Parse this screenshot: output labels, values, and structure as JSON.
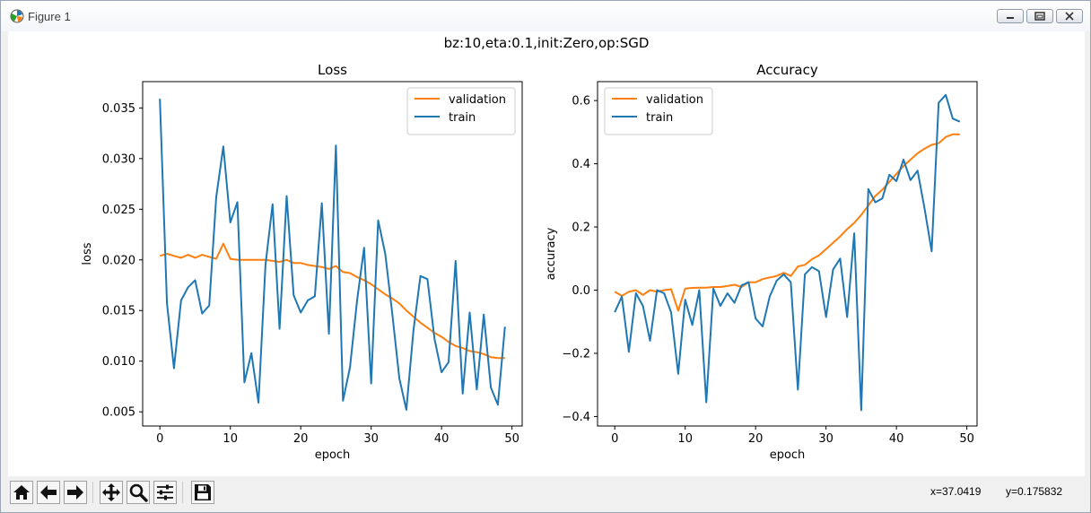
{
  "window": {
    "title": "Figure 1",
    "icon": "matplotlib-icon",
    "controls": [
      "minimize-icon",
      "maximize-icon",
      "close-icon"
    ]
  },
  "figure": {
    "suptitle": "bz:10,eta:0.1,init:Zero,op:SGD"
  },
  "toolbar": {
    "buttons": [
      "home-icon",
      "back-icon",
      "forward-icon",
      "pan-icon",
      "zoom-icon",
      "configure-subplots-icon",
      "save-icon"
    ],
    "coord_x": "x=37.0419",
    "coord_y": "y=0.175832"
  },
  "colors": {
    "train": "#1f77b4",
    "validation": "#ff7f0e",
    "toolbar_bg": "#f0f0f0"
  },
  "chart_data": [
    {
      "type": "line",
      "title": "Loss",
      "xlabel": "epoch",
      "ylabel": "loss",
      "xlim": [
        -2.45,
        51.45
      ],
      "ylim": [
        0.0036,
        0.0376
      ],
      "xticks": [
        0,
        10,
        20,
        30,
        40,
        50
      ],
      "xtick_labels": [
        "0",
        "10",
        "20",
        "30",
        "40",
        "50"
      ],
      "yticks": [
        0.005,
        0.01,
        0.015,
        0.02,
        0.025,
        0.03,
        0.035
      ],
      "ytick_labels": [
        "0.005",
        "0.010",
        "0.015",
        "0.020",
        "0.025",
        "0.030",
        "0.035"
      ],
      "grid": false,
      "legend_position": "upper right",
      "series": [
        {
          "name": "validation",
          "color": "#ff7f0e",
          "x": [
            0,
            1,
            2,
            3,
            4,
            5,
            6,
            7,
            8,
            9,
            10,
            11,
            12,
            13,
            14,
            15,
            16,
            17,
            18,
            19,
            20,
            21,
            22,
            23,
            24,
            25,
            26,
            27,
            28,
            29,
            30,
            31,
            32,
            33,
            34,
            35,
            36,
            37,
            38,
            39,
            40,
            41,
            42,
            43,
            44,
            45,
            46,
            47,
            48,
            49
          ],
          "values": [
            0.0204,
            0.0206,
            0.0204,
            0.0202,
            0.0205,
            0.0202,
            0.0205,
            0.0203,
            0.0201,
            0.0216,
            0.0201,
            0.02,
            0.02,
            0.02,
            0.02,
            0.02,
            0.0199,
            0.0198,
            0.02,
            0.0197,
            0.0197,
            0.0195,
            0.0194,
            0.0193,
            0.0191,
            0.0194,
            0.0188,
            0.0187,
            0.0183,
            0.018,
            0.0176,
            0.0171,
            0.0166,
            0.0162,
            0.0157,
            0.015,
            0.0144,
            0.0138,
            0.0133,
            0.0128,
            0.0124,
            0.0119,
            0.0115,
            0.0113,
            0.011,
            0.0109,
            0.0107,
            0.0104,
            0.0103,
            0.0103
          ]
        },
        {
          "name": "train",
          "color": "#1f77b4",
          "x": [
            0,
            1,
            2,
            3,
            4,
            5,
            6,
            7,
            8,
            9,
            10,
            11,
            12,
            13,
            14,
            15,
            16,
            17,
            18,
            19,
            20,
            21,
            22,
            23,
            24,
            25,
            26,
            27,
            28,
            29,
            30,
            31,
            32,
            33,
            34,
            35,
            36,
            37,
            38,
            39,
            40,
            41,
            42,
            43,
            44,
            45,
            46,
            47,
            48,
            49
          ],
          "values": [
            0.0359,
            0.0157,
            0.0093,
            0.016,
            0.0173,
            0.018,
            0.0147,
            0.0155,
            0.0262,
            0.0312,
            0.0237,
            0.0257,
            0.0079,
            0.0108,
            0.0059,
            0.0195,
            0.0255,
            0.0132,
            0.0263,
            0.0165,
            0.0148,
            0.016,
            0.0164,
            0.0256,
            0.0127,
            0.0313,
            0.0061,
            0.0094,
            0.016,
            0.0212,
            0.0078,
            0.0239,
            0.0206,
            0.0147,
            0.0083,
            0.0052,
            0.013,
            0.0184,
            0.0181,
            0.0122,
            0.0089,
            0.0099,
            0.0199,
            0.0068,
            0.0148,
            0.0072,
            0.0146,
            0.0074,
            0.0057,
            0.0134
          ]
        }
      ]
    },
    {
      "type": "line",
      "title": "Accuracy",
      "xlabel": "epoch",
      "ylabel": "accuracy",
      "xlim": [
        -2.45,
        51.45
      ],
      "ylim": [
        -0.43,
        0.66
      ],
      "xticks": [
        0,
        10,
        20,
        30,
        40,
        50
      ],
      "xtick_labels": [
        "0",
        "10",
        "20",
        "30",
        "40",
        "50"
      ],
      "yticks": [
        -0.4,
        -0.2,
        0.0,
        0.2,
        0.4,
        0.6
      ],
      "ytick_labels": [
        "−0.4",
        "−0.2",
        "0.0",
        "0.2",
        "0.4",
        "0.6"
      ],
      "grid": false,
      "legend_position": "upper left",
      "series": [
        {
          "name": "validation",
          "color": "#ff7f0e",
          "x": [
            0,
            1,
            2,
            3,
            4,
            5,
            6,
            7,
            8,
            9,
            10,
            11,
            12,
            13,
            14,
            15,
            16,
            17,
            18,
            19,
            20,
            21,
            22,
            23,
            24,
            25,
            26,
            27,
            28,
            29,
            30,
            31,
            32,
            33,
            34,
            35,
            36,
            37,
            38,
            39,
            40,
            41,
            42,
            43,
            44,
            45,
            46,
            47,
            48,
            49
          ],
          "values": [
            -0.005,
            -0.018,
            -0.005,
            0.0,
            -0.015,
            0.0,
            -0.005,
            0.0,
            0.003,
            -0.065,
            0.005,
            0.007,
            0.008,
            0.008,
            0.01,
            0.01,
            0.013,
            0.017,
            0.01,
            0.025,
            0.025,
            0.035,
            0.04,
            0.045,
            0.055,
            0.045,
            0.075,
            0.08,
            0.098,
            0.11,
            0.13,
            0.15,
            0.17,
            0.193,
            0.213,
            0.238,
            0.268,
            0.298,
            0.318,
            0.343,
            0.368,
            0.393,
            0.413,
            0.433,
            0.448,
            0.46,
            0.465,
            0.485,
            0.493,
            0.493
          ]
        },
        {
          "name": "train",
          "color": "#1f77b4",
          "x": [
            0,
            1,
            2,
            3,
            4,
            5,
            6,
            7,
            8,
            9,
            10,
            11,
            12,
            13,
            14,
            15,
            16,
            17,
            18,
            19,
            20,
            21,
            22,
            23,
            24,
            25,
            26,
            27,
            28,
            29,
            30,
            31,
            32,
            33,
            34,
            35,
            36,
            37,
            38,
            39,
            40,
            41,
            42,
            43,
            44,
            45,
            46,
            47,
            48,
            49
          ],
          "values": [
            -0.07,
            -0.02,
            -0.195,
            -0.01,
            -0.05,
            -0.16,
            0.0,
            -0.01,
            -0.07,
            -0.265,
            -0.03,
            -0.11,
            0.0,
            -0.355,
            0.005,
            -0.05,
            -0.01,
            -0.04,
            0.015,
            0.025,
            -0.09,
            -0.115,
            -0.02,
            0.03,
            0.05,
            0.025,
            -0.315,
            0.05,
            0.073,
            0.06,
            -0.085,
            0.065,
            0.1,
            -0.085,
            0.18,
            -0.38,
            0.32,
            0.278,
            0.29,
            0.365,
            0.345,
            0.413,
            0.348,
            0.378,
            0.258,
            0.123,
            0.593,
            0.618,
            0.543,
            0.533
          ]
        }
      ]
    }
  ]
}
